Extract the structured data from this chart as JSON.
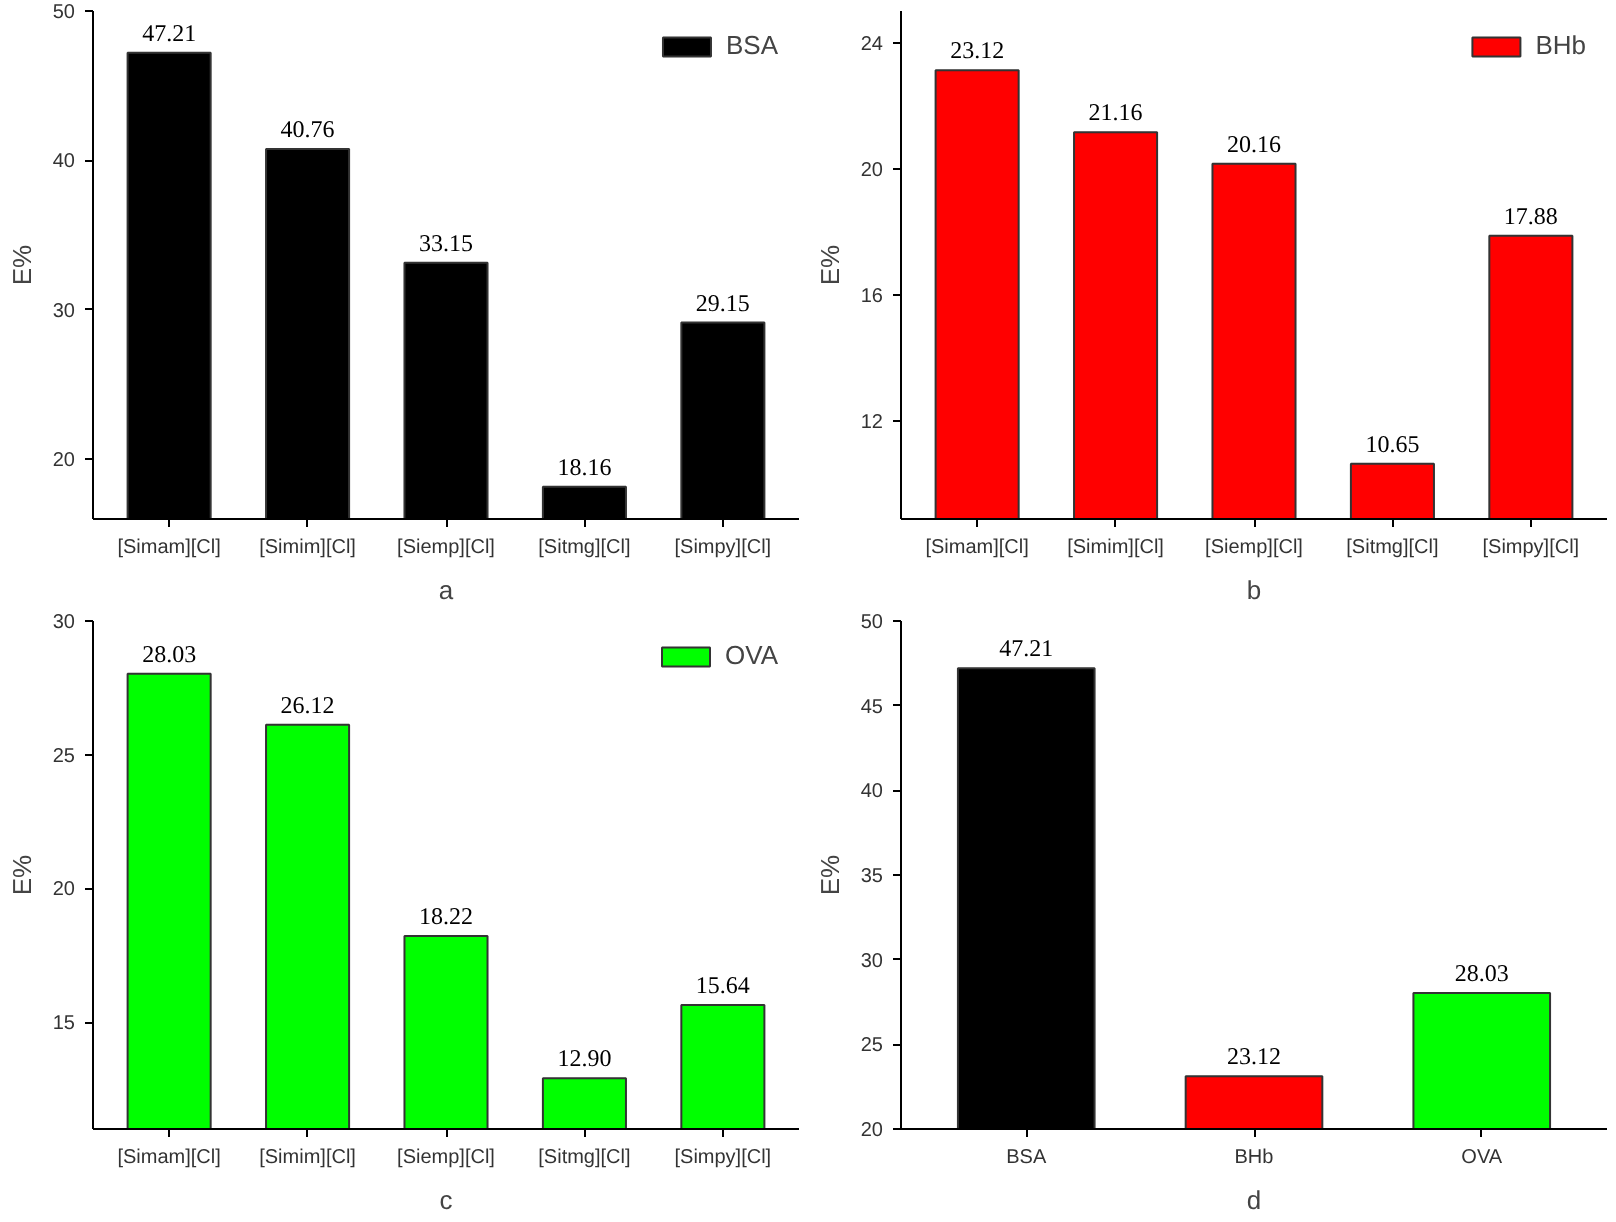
{
  "chart_data": [
    {
      "type": "bar",
      "xlabel": "a",
      "ylabel": "E%",
      "categories": [
        "[Simam][Cl]",
        "[Simim][Cl]",
        "[Siemp][Cl]",
        "[Sitmg][Cl]",
        "[Simpy][Cl]"
      ],
      "series": [
        {
          "name": "BSA",
          "color": "#000000",
          "values": [
            47.21,
            40.76,
            33.15,
            18.16,
            29.15
          ],
          "value_labels": [
            "47.21",
            "40.76",
            "33.15",
            "18.16",
            "29.15"
          ]
        }
      ],
      "ylim": [
        16,
        50
      ],
      "yticks": [
        20,
        30,
        40,
        50
      ],
      "legend": "top right",
      "grid": false
    },
    {
      "type": "bar",
      "xlabel": "b",
      "ylabel": "E%",
      "categories": [
        "[Simam][Cl]",
        "[Simim][Cl]",
        "[Siemp][Cl]",
        "[Sitmg][Cl]",
        "[Simpy][Cl]"
      ],
      "series": [
        {
          "name": "BHb",
          "color": "#ff0000",
          "values": [
            23.12,
            21.16,
            20.16,
            10.65,
            17.88
          ],
          "value_labels": [
            "23.12",
            "21.16",
            "20.16",
            "10.65",
            "17.88"
          ]
        }
      ],
      "ylim": [
        8.9,
        25
      ],
      "yticks": [
        12,
        16,
        20,
        24
      ],
      "legend": "top right",
      "grid": false
    },
    {
      "type": "bar",
      "xlabel": "c",
      "ylabel": "E%",
      "categories": [
        "[Simam][Cl]",
        "[Simim][Cl]",
        "[Siemp][Cl]",
        "[Sitmg][Cl]",
        "[Simpy][Cl]"
      ],
      "series": [
        {
          "name": "OVA",
          "color": "#00ff00",
          "values": [
            28.03,
            26.12,
            18.22,
            12.9,
            15.64
          ],
          "value_labels": [
            "28.03",
            "26.12",
            "18.22",
            "12.90",
            "15.64"
          ]
        }
      ],
      "ylim": [
        11,
        30
      ],
      "yticks": [
        15,
        20,
        25,
        30
      ],
      "legend": "top right",
      "grid": false
    },
    {
      "type": "bar",
      "xlabel": "d",
      "ylabel": "E%",
      "categories": [
        "BSA",
        "BHb",
        "OVA"
      ],
      "series": [
        {
          "colors": [
            "#000000",
            "#ff0000",
            "#00ff00"
          ],
          "values": [
            47.21,
            23.12,
            28.03
          ],
          "value_labels": [
            "47.21",
            "23.12",
            "28.03"
          ]
        }
      ],
      "ylim": [
        20,
        50
      ],
      "yticks": [
        20,
        25,
        30,
        35,
        40,
        45,
        50
      ],
      "grid": false
    }
  ]
}
